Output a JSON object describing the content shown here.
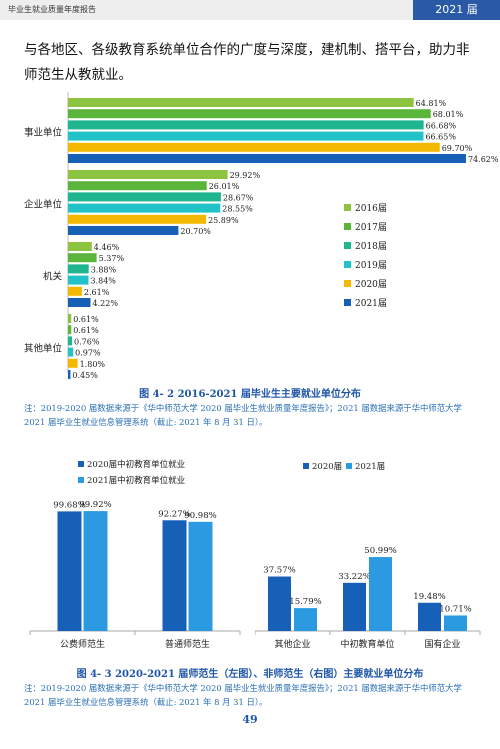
{
  "header": {
    "title": "毕业生就业质量年度报告",
    "year": "2021 届"
  },
  "intro": "与各地区、各级教育系统单位合作的广度与深度，建机制、搭平台，助力非师范生从教就业。",
  "figure1": {
    "caption": "图 4- 2  2016-2021 届毕业生主要就业单位分布",
    "note": "注：2019-2020 届数据来源于《华中师范大学 2020 届毕业生就业质量年度报告》；2021 届数据来源于华中师范大学 2021 届毕业生就业信息管理系统（截止: 2021 年 8 月 31 日）。"
  },
  "figure2": {
    "caption": "图 4- 3  2020-2021 届师范生（左图）、非师范生（右图）主要就业单位分布",
    "note": "注：2019-2020 届数据来源于《华中师范大学 2020 届毕业生就业质量年度报告》；2021 届数据来源于华中师范大学 2021 届毕业生就业信息管理系统（截止: 2021 年 8 月 31 日）。"
  },
  "page_number": "49",
  "chart_data": [
    {
      "type": "bar",
      "orientation": "horizontal",
      "categories": [
        "事业单位",
        "企业单位",
        "机关",
        "其他单位"
      ],
      "series": [
        {
          "name": "2016届",
          "color": "#8cc43f",
          "values": [
            64.81,
            29.92,
            4.46,
            0.61
          ]
        },
        {
          "name": "2017届",
          "color": "#5bb53a",
          "values": [
            68.01,
            26.01,
            5.37,
            0.61
          ]
        },
        {
          "name": "2018届",
          "color": "#1fb58e",
          "values": [
            66.68,
            28.67,
            3.88,
            0.76
          ]
        },
        {
          "name": "2019届",
          "color": "#22c3c8",
          "values": [
            66.65,
            28.55,
            3.84,
            0.97
          ]
        },
        {
          "name": "2020届",
          "color": "#f5b800",
          "values": [
            69.7,
            25.89,
            2.61,
            1.8
          ]
        },
        {
          "name": "2021届",
          "color": "#1660b7",
          "values": [
            74.62,
            20.7,
            4.22,
            0.45
          ]
        }
      ],
      "value_suffix": "%",
      "legend": "right"
    },
    {
      "type": "bar",
      "categories": [
        "公费师范生",
        "普通师范生"
      ],
      "series": [
        {
          "name": "2020届中初教育单位就业",
          "color": "#1660b7",
          "values": [
            99.68,
            92.27
          ]
        },
        {
          "name": "2021届中初教育单位就业",
          "color": "#2b9ae0",
          "values": [
            99.92,
            90.98
          ]
        }
      ],
      "value_suffix": "%",
      "legend": "top"
    },
    {
      "type": "bar",
      "categories": [
        "其他企业",
        "中初教育单位",
        "国有企业"
      ],
      "series": [
        {
          "name": "2020届",
          "color": "#1660b7",
          "values": [
            37.57,
            33.22,
            19.48
          ]
        },
        {
          "name": "2021届",
          "color": "#2b9ae0",
          "values": [
            15.79,
            50.99,
            10.71
          ]
        }
      ],
      "value_suffix": "%",
      "legend": "top"
    }
  ]
}
